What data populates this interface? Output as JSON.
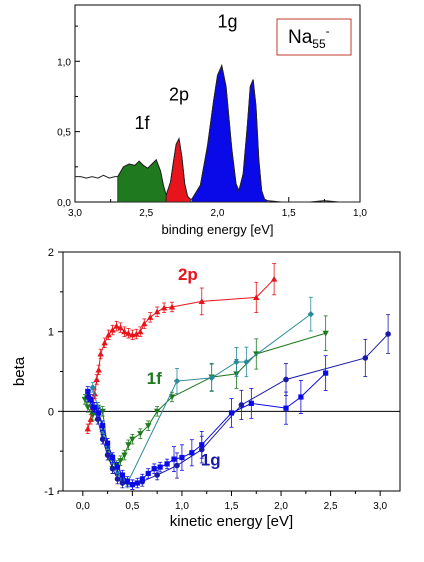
{
  "chart_data": [
    {
      "type": "area",
      "xlabel": "binding energy [eV]",
      "ylabel": "",
      "xlim": [
        3.0,
        1.0
      ],
      "ylim": [
        0.0,
        1.4
      ],
      "x_reversed": true,
      "xticks": [
        3.0,
        2.5,
        2.0,
        1.5,
        1.0
      ],
      "xtick_labels": [
        "3,0",
        "2,5",
        "2,0",
        "1,5",
        "1,0"
      ],
      "yticks": [
        0.0,
        0.5,
        1.0
      ],
      "ytick_labels": [
        "0,0",
        "0,5",
        "1,0"
      ],
      "legend_box": {
        "text": "Na",
        "sub": "55",
        "sup": "-",
        "color": "#c0392b"
      },
      "peak_labels": [
        {
          "text": "1f",
          "x": 2.53,
          "y": 0.52
        },
        {
          "text": "2p",
          "x": 2.27,
          "y": 0.72
        },
        {
          "text": "1g",
          "x": 1.93,
          "y": 1.24
        }
      ],
      "series": [
        {
          "name": "1f",
          "color": "#1f7a1f",
          "x": [
            2.7,
            2.66,
            2.62,
            2.58,
            2.55,
            2.52,
            2.49,
            2.46,
            2.43,
            2.4,
            2.38,
            2.36
          ],
          "values": [
            0.18,
            0.25,
            0.27,
            0.26,
            0.29,
            0.26,
            0.24,
            0.27,
            0.3,
            0.22,
            0.12,
            0.05
          ]
        },
        {
          "name": "2p",
          "color": "#e8141c",
          "x": [
            2.36,
            2.33,
            2.31,
            2.29,
            2.27,
            2.25,
            2.23,
            2.21,
            2.19
          ],
          "values": [
            0.05,
            0.14,
            0.28,
            0.41,
            0.45,
            0.32,
            0.13,
            0.04,
            0.02
          ]
        },
        {
          "name": "1g",
          "color": "#0a0ae8",
          "x": [
            2.18,
            2.12,
            2.07,
            2.03,
            2.0,
            1.97,
            1.94,
            1.9,
            1.87,
            1.85,
            1.82,
            1.79,
            1.77,
            1.75,
            1.73,
            1.71,
            1.69,
            1.67,
            1.65
          ],
          "values": [
            0.02,
            0.12,
            0.4,
            0.7,
            0.9,
            0.97,
            0.82,
            0.38,
            0.13,
            0.08,
            0.2,
            0.55,
            0.82,
            0.87,
            0.68,
            0.3,
            0.08,
            0.02,
            0.01
          ]
        }
      ],
      "baseline": {
        "x": [
          3.0,
          2.96,
          2.92,
          2.88,
          2.84,
          2.8,
          2.76,
          2.72,
          2.7
        ],
        "values": [
          0.18,
          0.18,
          0.17,
          0.18,
          0.17,
          0.19,
          0.17,
          0.18,
          0.18
        ]
      },
      "tail": {
        "x": [
          1.65,
          1.55,
          1.45,
          1.35,
          1.25,
          1.15,
          1.05,
          1.0
        ],
        "values": [
          0.01,
          0.0,
          0.0,
          0.0,
          0.01,
          0.0,
          0.0,
          0.0
        ]
      }
    },
    {
      "type": "scatter",
      "xlabel": "kinetic energy [eV]",
      "ylabel": "beta",
      "xlim": [
        -0.2,
        3.2
      ],
      "ylim": [
        -1.0,
        2.0
      ],
      "xticks": [
        0.0,
        0.5,
        1.0,
        1.5,
        2.0,
        2.5,
        3.0
      ],
      "xtick_labels": [
        "0,0",
        "0,5",
        "1,0",
        "1,5",
        "2,0",
        "2,5",
        "3,0"
      ],
      "yticks": [
        -1,
        0,
        1,
        2
      ],
      "ytick_labels": [
        "-1",
        "0",
        "1",
        "2"
      ],
      "series_labels": [
        {
          "text": "2p",
          "color": "#e8141c",
          "x": 1.06,
          "y": 1.65
        },
        {
          "text": "1f",
          "color": "#1f7a1f",
          "x": 0.72,
          "y": 0.34
        },
        {
          "text": "1g",
          "color": "#1a1aa8",
          "x": 1.29,
          "y": -0.68
        }
      ],
      "series": [
        {
          "name": "2p",
          "color": "#e8141c",
          "marker": "triangle-up",
          "x": [
            0.05,
            0.08,
            0.1,
            0.12,
            0.14,
            0.16,
            0.18,
            0.22,
            0.26,
            0.3,
            0.34,
            0.38,
            0.42,
            0.46,
            0.5,
            0.54,
            0.58,
            0.62,
            0.68,
            0.75,
            0.82,
            0.9,
            1.2,
            1.75,
            1.93
          ],
          "values": [
            -0.22,
            -0.1,
            0.05,
            0.22,
            0.4,
            0.52,
            0.72,
            0.86,
            0.96,
            1.02,
            1.07,
            1.05,
            1.0,
            0.98,
            0.96,
            0.97,
            1.0,
            1.1,
            1.18,
            1.25,
            1.3,
            1.31,
            1.38,
            1.43,
            1.66
          ]
        },
        {
          "name": "1f",
          "color": "#1f7a1f",
          "marker": "triangle-down",
          "x": [
            0.02,
            0.05,
            0.1,
            0.15,
            0.2,
            0.26,
            0.3,
            0.34,
            0.38,
            0.42,
            0.46,
            0.5,
            0.58,
            0.66,
            0.75,
            0.9,
            1.3,
            1.55,
            1.75,
            2.45
          ],
          "values": [
            0.15,
            0.05,
            -0.05,
            0.05,
            0.0,
            -0.55,
            -0.72,
            -0.68,
            -0.62,
            -0.55,
            -0.42,
            -0.35,
            -0.28,
            -0.18,
            0.0,
            0.18,
            0.43,
            0.47,
            0.72,
            0.98
          ]
        },
        {
          "name": "1f-diamond",
          "color": "#2a8a9c",
          "marker": "diamond",
          "x": [
            0.05,
            0.1,
            0.15,
            0.2,
            0.25,
            0.3,
            0.35,
            0.4,
            0.45,
            0.95,
            1.3,
            1.55,
            1.65,
            2.3
          ],
          "values": [
            0.2,
            0.3,
            0.05,
            -0.25,
            -0.45,
            -0.6,
            -0.78,
            -0.86,
            -0.9,
            0.38,
            0.42,
            0.62,
            0.62,
            1.22
          ]
        },
        {
          "name": "1g-circle",
          "color": "#1a1aa8",
          "marker": "circle",
          "x": [
            0.05,
            0.1,
            0.15,
            0.2,
            0.25,
            0.3,
            0.35,
            0.4,
            0.5,
            0.6,
            0.75,
            0.95,
            1.2,
            1.6,
            2.05,
            2.85,
            3.08
          ],
          "values": [
            0.18,
            0.05,
            -0.1,
            -0.35,
            -0.55,
            -0.72,
            -0.85,
            -0.9,
            -0.92,
            -0.88,
            -0.8,
            -0.68,
            -0.48,
            0.08,
            0.4,
            0.67,
            0.97
          ]
        },
        {
          "name": "1g-square",
          "color": "#0a0ae8",
          "marker": "square",
          "x": [
            0.05,
            0.08,
            0.12,
            0.16,
            0.2,
            0.25,
            0.3,
            0.35,
            0.4,
            0.45,
            0.5,
            0.55,
            0.6,
            0.66,
            0.72,
            0.78,
            0.85,
            0.92,
            1.0,
            1.1,
            1.2,
            1.5,
            1.7,
            2.05,
            2.2,
            2.45
          ],
          "values": [
            0.25,
            0.15,
            0.05,
            -0.02,
            -0.18,
            -0.4,
            -0.58,
            -0.7,
            -0.8,
            -0.88,
            -0.92,
            -0.9,
            -0.85,
            -0.78,
            -0.72,
            -0.7,
            -0.66,
            -0.6,
            -0.58,
            -0.52,
            -0.42,
            -0.02,
            0.1,
            0.04,
            0.18,
            0.48
          ]
        }
      ]
    }
  ]
}
